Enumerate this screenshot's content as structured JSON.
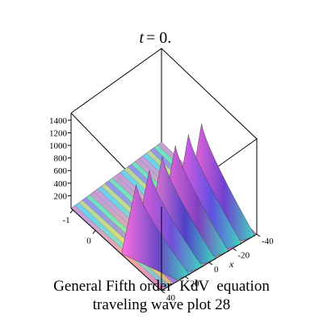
{
  "chart_data": {
    "type": "surface",
    "title_var": "t",
    "title_value": "= 0.",
    "xlabel": "x",
    "z_ticks": [
      "200",
      "400",
      "600",
      "800",
      "1000",
      "1200",
      "1400"
    ],
    "x_ticks": [
      "-40",
      "-20",
      "0",
      "20",
      "40"
    ],
    "y_ticks": [
      "-1",
      "0"
    ],
    "z_range": [
      0,
      1450
    ],
    "x_range": [
      -40,
      40
    ],
    "y_range": [
      -1,
      1
    ],
    "peaks": [
      {
        "x": -33,
        "height": 1450
      },
      {
        "x": -22,
        "height": 1400
      },
      {
        "x": -11,
        "height": 1350
      },
      {
        "x": 0,
        "height": 1300
      },
      {
        "x": 11,
        "height": 1200
      },
      {
        "x": 22,
        "height": 1100
      }
    ]
  },
  "caption": {
    "line1": "General Fifth order  KdV  equation",
    "line2": "traveling wave plot 28"
  }
}
